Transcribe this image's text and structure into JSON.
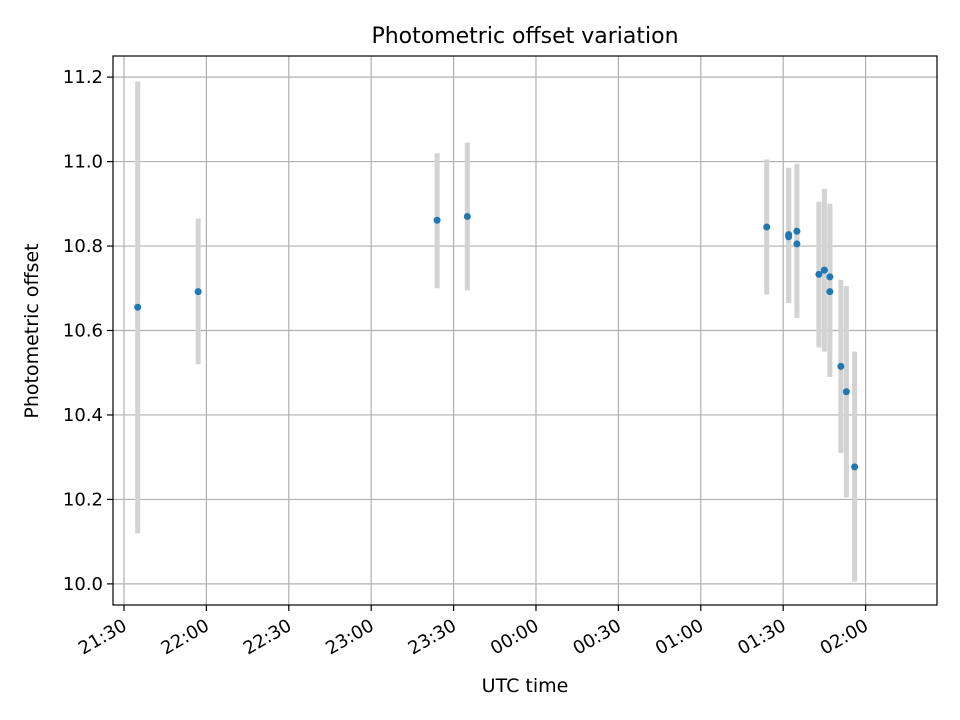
{
  "chart_data": {
    "type": "scatter",
    "title": "Photometric offset variation",
    "xlabel": "UTC time",
    "ylabel": "Photometric offset",
    "x_axis_type": "time",
    "x_ticks": [
      "21:30",
      "22:00",
      "22:30",
      "23:00",
      "23:30",
      "00:00",
      "00:30",
      "01:00",
      "01:30",
      "02:00"
    ],
    "y_ticks": [
      "10.0",
      "10.2",
      "10.4",
      "10.6",
      "10.8",
      "11.0",
      "11.2"
    ],
    "ylim": [
      9.95,
      11.25
    ],
    "xlim": [
      "21:26",
      "02:26"
    ],
    "grid": true,
    "colors": {
      "points": "#1f77b4",
      "error_bars": "#d3d3d3",
      "grid": "#b0b0b0"
    },
    "series": [
      {
        "x": [
          "21:35",
          "21:57",
          "23:24",
          "23:35",
          "01:24",
          "01:32",
          "01:32",
          "01:35",
          "01:35",
          "01:43",
          "01:45",
          "01:47",
          "01:47",
          "01:51",
          "01:53",
          "01:56"
        ],
        "y": [
          10.655,
          10.692,
          10.861,
          10.87,
          10.845,
          10.822,
          10.827,
          10.835,
          10.805,
          10.733,
          10.743,
          10.727,
          10.692,
          10.515,
          10.455,
          10.277
        ],
        "err_low": [
          10.12,
          10.52,
          10.7,
          10.695,
          10.685,
          10.665,
          10.665,
          10.67,
          10.63,
          10.56,
          10.55,
          10.55,
          10.49,
          10.31,
          10.205,
          10.005
        ],
        "err_high": [
          11.19,
          10.865,
          11.02,
          11.045,
          11.005,
          10.985,
          10.985,
          10.995,
          10.98,
          10.905,
          10.935,
          10.9,
          10.895,
          10.72,
          10.705,
          10.55
        ]
      }
    ]
  }
}
